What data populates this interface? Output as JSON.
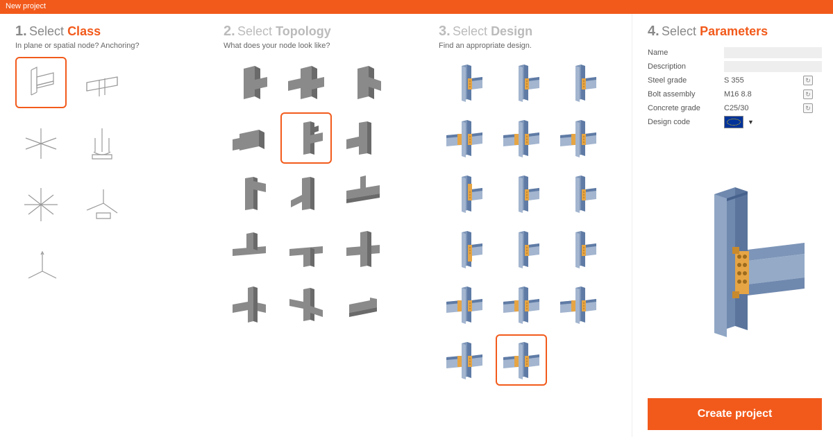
{
  "titlebar": "New project",
  "accent": "#f25a1b",
  "steps": {
    "class": {
      "num": "1.",
      "word": "Select ",
      "strong": "Class",
      "sub": "In plane or spatial node? Anchoring?"
    },
    "topology": {
      "num": "2.",
      "word": "Select ",
      "strong": "Topology",
      "sub": "What does your node look like?"
    },
    "design": {
      "num": "3.",
      "word": "Select ",
      "strong": "Design",
      "sub": "Find an appropriate design."
    },
    "params": {
      "num": "4.",
      "word": "Select ",
      "strong": "Parameters"
    }
  },
  "class_items": [
    {
      "id": "frame-planar",
      "sel": true
    },
    {
      "id": "beam-planar"
    },
    {
      "id": "star-spatial"
    },
    {
      "id": "anchor-base"
    },
    {
      "id": "cross-spatial"
    },
    {
      "id": "truss-plate"
    },
    {
      "id": "axes"
    }
  ],
  "topology_items": [
    {
      "id": "t0"
    },
    {
      "id": "t1"
    },
    {
      "id": "t2"
    },
    {
      "id": "t3"
    },
    {
      "id": "t4",
      "sel": true
    },
    {
      "id": "t5"
    },
    {
      "id": "t6"
    },
    {
      "id": "t7"
    },
    {
      "id": "t8"
    },
    {
      "id": "t9"
    },
    {
      "id": "t10"
    },
    {
      "id": "t11"
    },
    {
      "id": "t12"
    },
    {
      "id": "t13"
    },
    {
      "id": "t14"
    }
  ],
  "design_items": [
    {
      "id": "d0"
    },
    {
      "id": "d1"
    },
    {
      "id": "d2"
    },
    {
      "id": "d3"
    },
    {
      "id": "d4"
    },
    {
      "id": "d5"
    },
    {
      "id": "d6"
    },
    {
      "id": "d7"
    },
    {
      "id": "d8"
    },
    {
      "id": "d9"
    },
    {
      "id": "d10"
    },
    {
      "id": "d11"
    },
    {
      "id": "d12"
    },
    {
      "id": "d13"
    },
    {
      "id": "d14"
    },
    {
      "id": "d15"
    },
    {
      "id": "d16",
      "sel": true
    }
  ],
  "params": {
    "name_label": "Name",
    "name_value": "",
    "desc_label": "Description",
    "desc_value": "",
    "steel_label": "Steel grade",
    "steel_value": "S 355",
    "bolt_label": "Bolt assembly",
    "bolt_value": "M16 8.8",
    "concrete_label": "Concrete grade",
    "concrete_value": "C25/30",
    "code_label": "Design code",
    "code_value": "EU"
  },
  "create_label": "Create project",
  "colors": {
    "beam": "#7d95b8",
    "beam_light": "#a3b5cf",
    "beam_dark": "#5f7ba5",
    "plate": "#e6a545",
    "bolt": "#c78a2e",
    "wire": "#999",
    "grey": "#8a8a8a",
    "grey_d": "#6a6a6a"
  }
}
